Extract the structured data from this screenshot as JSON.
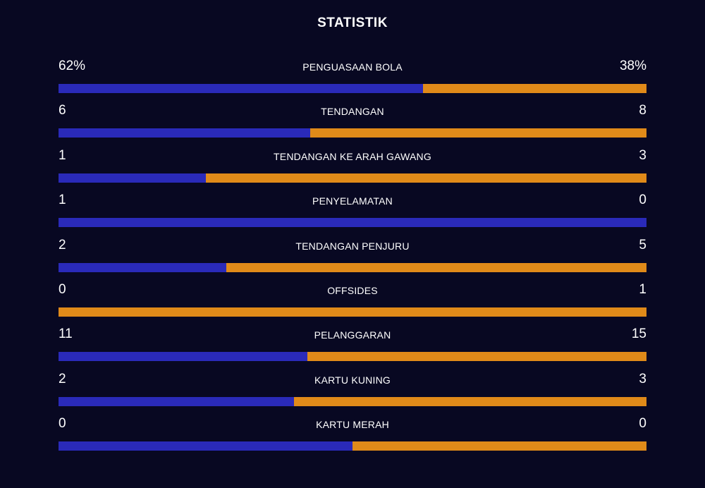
{
  "header": {
    "title": "STATISTIK"
  },
  "colors": {
    "background": "#080822",
    "home": "#2a2ab9",
    "away": "#e08a19",
    "text": "#ffffff"
  },
  "stats": [
    {
      "label": "PENGUASAAN BOLA",
      "home": "62%",
      "away": "38%",
      "home_share": 0.62
    },
    {
      "label": "TENDANGAN",
      "home": "6",
      "away": "8",
      "home_share": 0.4286
    },
    {
      "label": "TENDANGAN KE ARAH GAWANG",
      "home": "1",
      "away": "3",
      "home_share": 0.25
    },
    {
      "label": "PENYELAMATAN",
      "home": "1",
      "away": "0",
      "home_share": 1.0
    },
    {
      "label": "TENDANGAN PENJURU",
      "home": "2",
      "away": "5",
      "home_share": 0.2857
    },
    {
      "label": "OFFSIDES",
      "home": "0",
      "away": "1",
      "home_share": 0.0
    },
    {
      "label": "PELANGGARAN",
      "home": "11",
      "away": "15",
      "home_share": 0.4231
    },
    {
      "label": "KARTU KUNING",
      "home": "2",
      "away": "3",
      "home_share": 0.4
    },
    {
      "label": "KARTU MERAH",
      "home": "0",
      "away": "0",
      "home_share": 0.5
    }
  ]
}
